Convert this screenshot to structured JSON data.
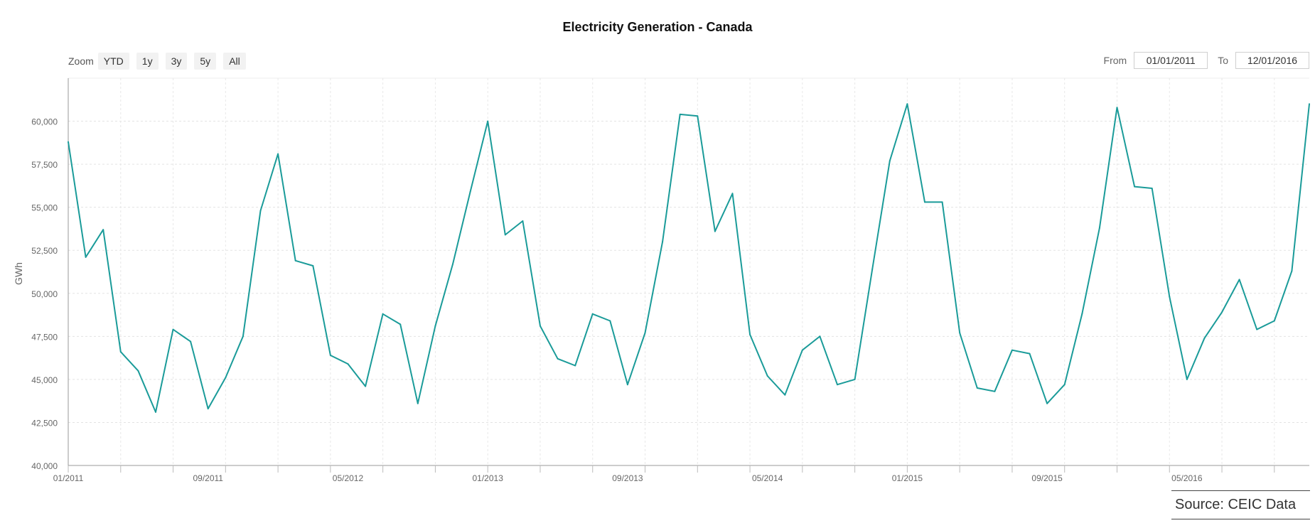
{
  "chart_data": {
    "type": "line",
    "title": "Electricity Generation - Canada",
    "ylabel": "GWh",
    "ylim": [
      40000,
      62500
    ],
    "yticks": [
      "40,000",
      "42,500",
      "45,000",
      "47,500",
      "50,000",
      "52,500",
      "55,000",
      "57,500",
      "60,000"
    ],
    "xticks": [
      "01/2011",
      "09/2011",
      "05/2012",
      "01/2013",
      "09/2013",
      "05/2014",
      "01/2015",
      "09/2015",
      "05/2016"
    ],
    "grid": true,
    "series": [
      {
        "color": "#1a9b99",
        "start": "2011-01",
        "values": [
          58800,
          52100,
          53700,
          46600,
          45500,
          43100,
          47900,
          47200,
          43300,
          45100,
          47500,
          54800,
          58100,
          51900,
          51600,
          46400,
          45900,
          44600,
          48800,
          48200,
          43600,
          48100,
          51700,
          55900,
          60000,
          53400,
          54200,
          48100,
          46200,
          45800,
          48800,
          48400,
          44700,
          47700,
          53000,
          60400,
          60300,
          53600,
          55800,
          47600,
          45200,
          44100,
          46700,
          47500,
          44700,
          45000,
          51400,
          57700,
          61000,
          55300,
          55300,
          47700,
          44500,
          44300,
          46700,
          46500,
          43600,
          44700,
          48800,
          53800,
          60800,
          56200,
          56100,
          49800,
          45000,
          47400,
          48900,
          50800,
          47900,
          48400,
          51300,
          61000
        ]
      }
    ]
  },
  "controls": {
    "zoom_label": "Zoom",
    "zoom_buttons": [
      "YTD",
      "1y",
      "3y",
      "5y",
      "All"
    ],
    "from_label": "From",
    "from_value": "01/01/2011",
    "to_label": "To",
    "to_value": "12/01/2016"
  },
  "source": "Source: CEIC Data"
}
